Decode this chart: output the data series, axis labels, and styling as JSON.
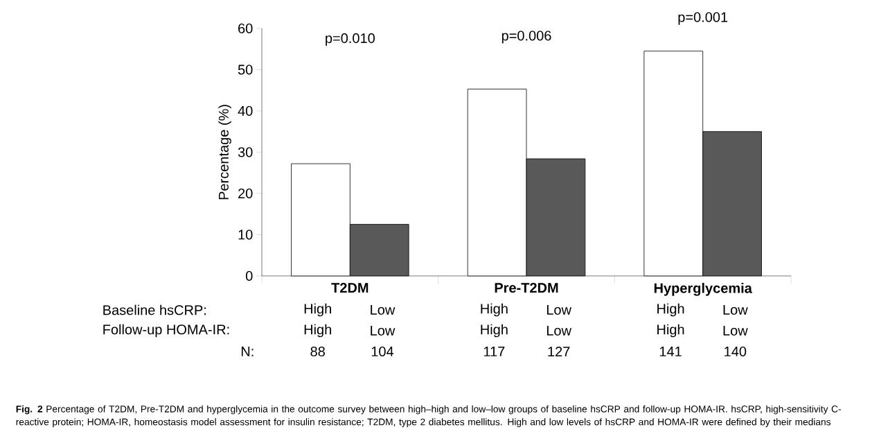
{
  "chart_data": {
    "type": "bar",
    "categories": [
      "T2DM",
      "Pre-T2DM",
      "Hyperglycemia"
    ],
    "series": [
      {
        "color": "#ffffff",
        "values": [
          27.2,
          45.3,
          54.5
        ]
      },
      {
        "color": "#595959",
        "values": [
          12.5,
          28.4,
          35.0
        ]
      }
    ],
    "ylabel": "Percentage (%)",
    "ylim": [
      0,
      60
    ],
    "yticks": [
      0,
      10,
      20,
      30,
      40,
      50,
      60
    ],
    "annotations": [
      "p=0.010",
      "p=0.006",
      "p=0.001",
      "Baseline hsCRP:",
      "High",
      "Low",
      "High",
      "Low",
      "High",
      "Low",
      "Follow-up HOMA-IR:",
      "High",
      "Low",
      "High",
      "Low",
      "High",
      "Low",
      "N:",
      "88",
      "104",
      "117",
      "127",
      "141",
      "140",
      "**Fig. 2** Percentage of T2DM, Pre-T2DM and hyperglycemia in the outcome survey between high–high and low–low groups of baseline hsCRP and follow-up HOMA-IR. hsCRP, high-sensitivity C-reactive protein; HOMA-IR, homeostasis model assessment for insulin resistance; T2DM, type 2 diabetes mellitus. High and low levels of hsCRP and HOMA-IR were defined by their medians"
    ]
  }
}
